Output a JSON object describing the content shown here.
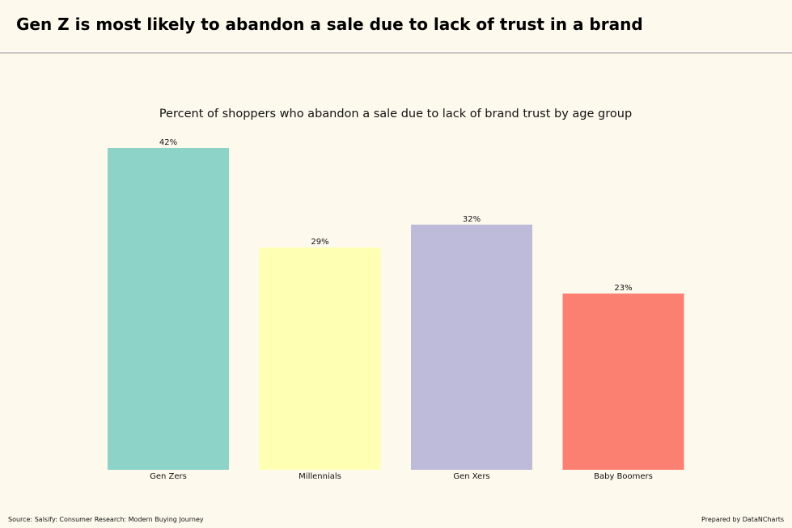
{
  "header": {
    "headline": "Gen Z is most likely to abandon a sale due to lack of trust in a brand"
  },
  "footer": {
    "source": "Source: Salsify: Consumer Research: Modern Buying Journey",
    "credit": "Prepared by DataNCharts"
  },
  "chart_data": {
    "type": "bar",
    "title": "Percent of shoppers who abandon a sale due to lack of brand trust by age group",
    "xlabel": "",
    "ylabel": "",
    "categories": [
      "Gen Zers",
      "Millennials",
      "Gen Xers",
      "Baby Boomers"
    ],
    "values": [
      42,
      29,
      32,
      23
    ],
    "value_labels": [
      "42%",
      "29%",
      "32%",
      "23%"
    ],
    "colors": [
      "#8dd3c7",
      "#ffffb3",
      "#bebada",
      "#fb8072"
    ],
    "ylim": [
      0,
      42
    ],
    "grid": false,
    "y_axis_visible": false
  }
}
